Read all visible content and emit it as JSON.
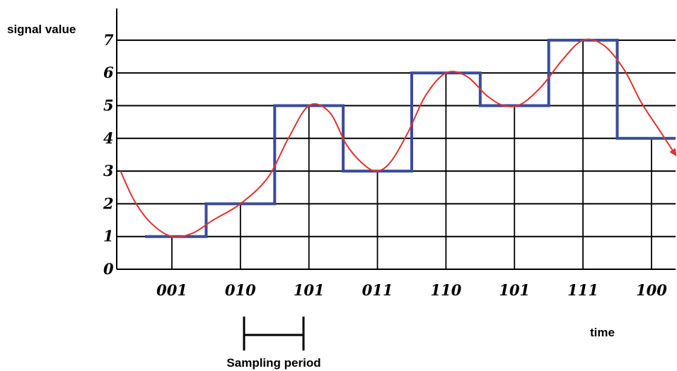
{
  "chart_data": {
    "type": "line",
    "ylabel": "signal value",
    "xlabel": "time",
    "ylim": [
      0,
      7
    ],
    "yticks": [
      "0",
      "1",
      "2",
      "3",
      "4",
      "5",
      "6",
      "7"
    ],
    "grid": true,
    "sample_codes": [
      "001",
      "010",
      "101",
      "011",
      "110",
      "101",
      "111",
      "100"
    ],
    "sample_values": [
      1,
      2,
      5,
      3,
      6,
      5,
      7,
      4
    ],
    "series": [
      {
        "kind": "quantized-steps",
        "color": "#3a4b9b",
        "values": [
          1,
          2,
          5,
          3,
          6,
          5,
          7,
          4
        ]
      },
      {
        "kind": "analog-signal",
        "color": "#e0332f",
        "points": [
          [
            -0.75,
            3.0
          ],
          [
            -0.55,
            2.1
          ],
          [
            -0.3,
            1.4
          ],
          [
            0.0,
            1.0
          ],
          [
            0.3,
            1.1
          ],
          [
            0.6,
            1.5
          ],
          [
            1.0,
            2.0
          ],
          [
            1.4,
            2.8
          ],
          [
            1.7,
            4.0
          ],
          [
            2.0,
            5.0
          ],
          [
            2.3,
            4.8
          ],
          [
            2.55,
            3.8
          ],
          [
            2.8,
            3.2
          ],
          [
            3.0,
            3.0
          ],
          [
            3.2,
            3.3
          ],
          [
            3.45,
            4.2
          ],
          [
            3.7,
            5.3
          ],
          [
            4.0,
            6.0
          ],
          [
            4.3,
            5.9
          ],
          [
            4.6,
            5.3
          ],
          [
            4.85,
            5.0
          ],
          [
            5.1,
            5.05
          ],
          [
            5.4,
            5.6
          ],
          [
            5.7,
            6.4
          ],
          [
            6.0,
            7.0
          ],
          [
            6.3,
            6.85
          ],
          [
            6.6,
            6.1
          ],
          [
            6.85,
            5.1
          ],
          [
            7.1,
            4.3
          ],
          [
            7.35,
            3.5
          ]
        ]
      }
    ],
    "annotation": "Sampling period"
  }
}
